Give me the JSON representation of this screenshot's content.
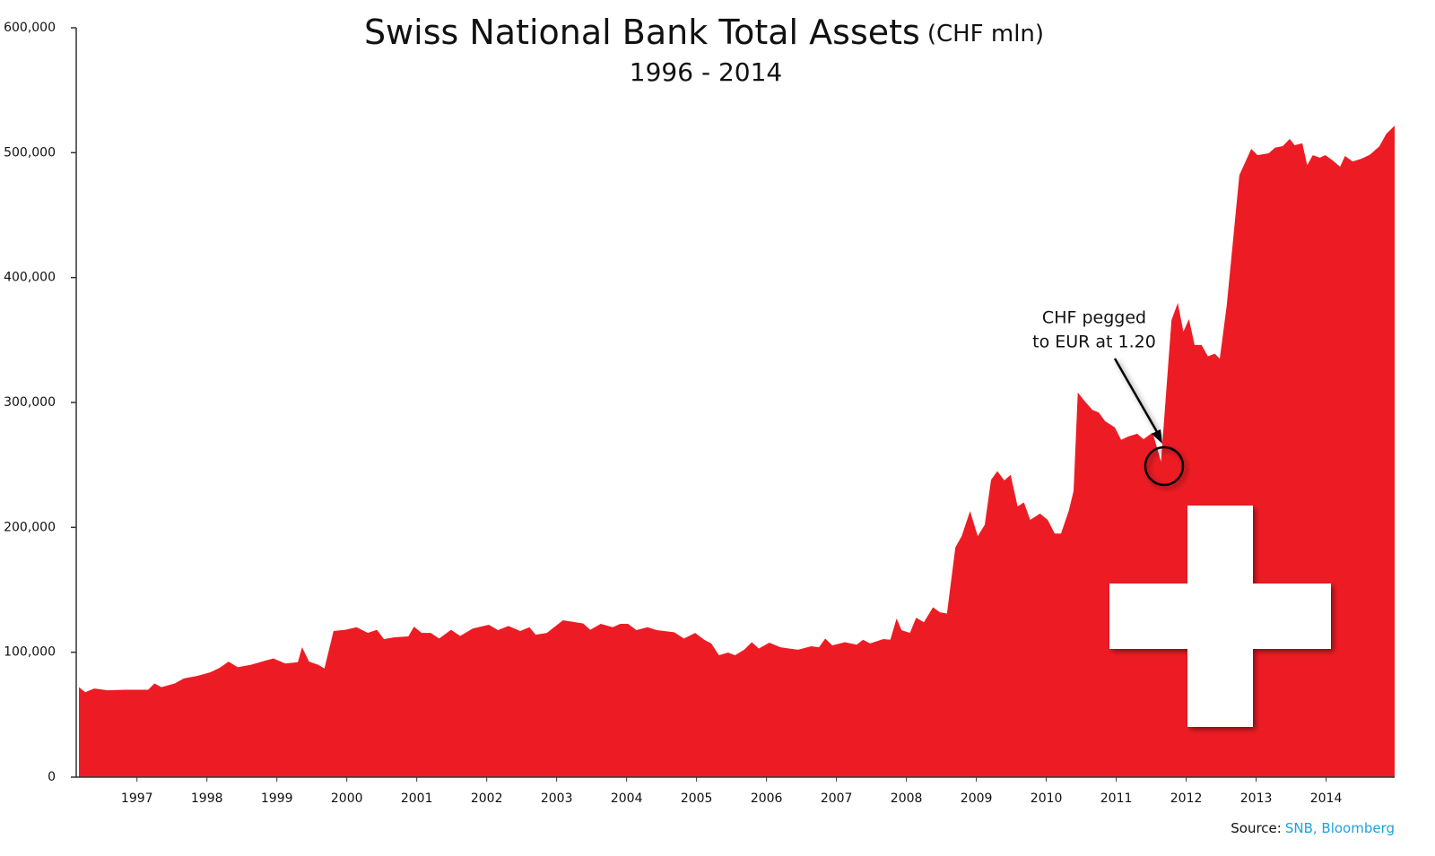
{
  "chart_data": {
    "type": "area",
    "title": "Swiss National Bank Total Assets",
    "title_unit": "(CHF mln)",
    "subtitle": "1996 - 2014",
    "annotation": [
      "CHF pegged",
      "to EUR at 1.20"
    ],
    "source_label": "Source:",
    "source": "SNB, Bloomberg",
    "color": "#ed1c24",
    "x": [
      1996.17,
      1996.26,
      1996.39,
      1996.58,
      1996.84,
      1997.16,
      1997.25,
      1997.35,
      1997.54,
      1997.67,
      1997.86,
      1998.05,
      1998.18,
      1998.31,
      1998.44,
      1998.63,
      1998.82,
      1998.95,
      1999.12,
      1999.3,
      1999.36,
      1999.46,
      1999.59,
      1999.68,
      1999.81,
      1999.98,
      2000.14,
      2000.3,
      2000.43,
      2000.53,
      2000.68,
      2000.88,
      2000.96,
      2001.07,
      2001.2,
      2001.32,
      2001.49,
      2001.62,
      2001.8,
      2002.03,
      2002.16,
      2002.31,
      2002.48,
      2002.61,
      2002.7,
      2002.86,
      2003.09,
      2003.38,
      2003.48,
      2003.63,
      2003.8,
      2003.91,
      2004.02,
      2004.14,
      2004.3,
      2004.43,
      2004.68,
      2004.82,
      2004.98,
      2005.11,
      2005.21,
      2005.32,
      2005.45,
      2005.55,
      2005.68,
      2005.79,
      2005.89,
      2006.04,
      2006.2,
      2006.32,
      2006.45,
      2006.64,
      2006.75,
      2006.84,
      2006.94,
      2007.12,
      2007.29,
      2007.38,
      2007.48,
      2007.67,
      2007.77,
      2007.86,
      2007.93,
      2008.05,
      2008.14,
      2008.25,
      2008.38,
      2008.48,
      2008.58,
      2008.7,
      2008.79,
      2008.91,
      2009.02,
      2009.12,
      2009.21,
      2009.3,
      2009.4,
      2009.49,
      2009.59,
      2009.68,
      2009.77,
      2009.91,
      2010.02,
      2010.12,
      2010.21,
      2010.32,
      2010.39,
      2010.45,
      2010.55,
      2010.66,
      2010.75,
      2010.84,
      2010.98,
      2011.07,
      2011.17,
      2011.3,
      2011.39,
      2011.52,
      2011.64,
      2011.79,
      2011.88,
      2011.96,
      2012.04,
      2012.12,
      2012.22,
      2012.31,
      2012.41,
      2012.48,
      2012.58,
      2012.67,
      2012.76,
      2012.93,
      2013.02,
      2013.18,
      2013.27,
      2013.38,
      2013.48,
      2013.55,
      2013.66,
      2013.73,
      2013.81,
      2013.91,
      2013.99,
      2014.09,
      2014.2,
      2014.27,
      2014.38,
      2014.5,
      2014.63,
      2014.76,
      2014.86,
      2014.98
    ],
    "values": [
      72000,
      68000,
      71000,
      69500,
      70000,
      70000,
      75000,
      72000,
      75000,
      79000,
      81000,
      84000,
      87500,
      92500,
      88000,
      90000,
      93000,
      95000,
      91000,
      92000,
      104000,
      92500,
      90000,
      87000,
      117000,
      118000,
      120000,
      115500,
      118000,
      110500,
      112000,
      112700,
      120500,
      115500,
      115500,
      111000,
      118000,
      113000,
      119000,
      122000,
      117700,
      121000,
      117000,
      120000,
      114000,
      115500,
      125600,
      123000,
      118000,
      122700,
      120000,
      122700,
      122700,
      117700,
      120000,
      117700,
      116000,
      111000,
      115500,
      110000,
      107000,
      97600,
      99800,
      97600,
      102000,
      108000,
      103000,
      107700,
      104000,
      103000,
      102000,
      104800,
      104000,
      111000,
      105500,
      108000,
      106000,
      110000,
      107000,
      110500,
      110000,
      127000,
      117700,
      115500,
      127700,
      124000,
      136000,
      132000,
      131000,
      184000,
      193000,
      213000,
      193000,
      202000,
      238000,
      245000,
      237600,
      242000,
      216700,
      220000,
      206000,
      211000,
      206000,
      195000,
      195000,
      213000,
      229000,
      308000,
      301000,
      294000,
      292000,
      285000,
      280000,
      270000,
      272700,
      275000,
      270600,
      276000,
      252600,
      366000,
      379700,
      356700,
      366700,
      346000,
      346000,
      337000,
      339000,
      335000,
      378000,
      430000,
      482000,
      503000,
      498000,
      499500,
      504000,
      505300,
      511000,
      506000,
      507500,
      490000,
      498000,
      496000,
      498000,
      494000,
      488800,
      497400,
      493000,
      495000,
      498500,
      505000,
      515000,
      521700
    ],
    "xlim": [
      1996.17,
      2014.98
    ],
    "xticks": [
      1997,
      1998,
      1999,
      2000,
      2001,
      2002,
      2003,
      2004,
      2005,
      2006,
      2007,
      2008,
      2009,
      2010,
      2011,
      2012,
      2013,
      2014
    ],
    "ylim": [
      0,
      600000
    ],
    "yticks": [
      0,
      {
        "value": 100000,
        "label": "100,000"
      },
      {
        "value": 200000,
        "label": "200,000"
      },
      {
        "value": 300000,
        "label": "300,000"
      },
      {
        "value": 400000,
        "label": "400,000"
      },
      {
        "value": 500000,
        "label": "500,000"
      },
      {
        "value": 600000,
        "label": "600,000"
      }
    ]
  }
}
